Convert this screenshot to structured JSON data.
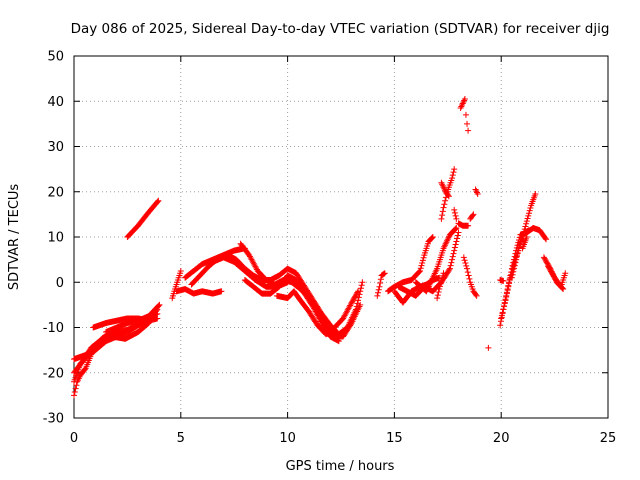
{
  "chart_data": {
    "type": "scatter",
    "title": "Day 086 of 2025, Sidereal Day-to-day VTEC variation (SDTVAR) for receiver djig",
    "xlabel": "GPS time / hours",
    "ylabel": "SDTVAR / TECUs",
    "xlim": [
      0,
      25
    ],
    "ylim": [
      -30,
      50
    ],
    "xticks": [
      0,
      5,
      10,
      15,
      20,
      25
    ],
    "yticks": [
      -30,
      -20,
      -10,
      0,
      10,
      20,
      30,
      40,
      50
    ],
    "grid": true,
    "marker": "plus",
    "color": "#ff0000",
    "tracks": [
      [
        [
          0.0,
          -25.0
        ],
        [
          0.15,
          -22.0
        ],
        [
          0.3,
          -20.5
        ],
        [
          0.55,
          -19.0
        ],
        [
          0.8,
          -16.0
        ],
        [
          1.0,
          -14.0
        ],
        [
          1.3,
          -12.5
        ],
        [
          1.6,
          -11.5
        ],
        [
          2.0,
          -11.0
        ],
        [
          2.5,
          -10.5
        ],
        [
          3.0,
          -9.5
        ],
        [
          3.5,
          -8.5
        ],
        [
          3.9,
          -6.0
        ]
      ],
      [
        [
          0.0,
          -22.0
        ],
        [
          0.3,
          -18.0
        ],
        [
          0.6,
          -16.5
        ],
        [
          1.0,
          -15.0
        ],
        [
          1.5,
          -13.0
        ],
        [
          2.0,
          -12.0
        ],
        [
          2.5,
          -11.0
        ],
        [
          3.0,
          -9.5
        ],
        [
          3.5,
          -7.5
        ],
        [
          3.9,
          -7.0
        ]
      ],
      [
        [
          0.0,
          -17.0
        ],
        [
          0.3,
          -16.5
        ],
        [
          0.6,
          -16.0
        ]
      ],
      [
        [
          0.0,
          -20.0
        ],
        [
          0.4,
          -17.5
        ],
        [
          0.8,
          -14.5
        ],
        [
          1.2,
          -13.0
        ],
        [
          1.8,
          -12.0
        ],
        [
          2.4,
          -12.5
        ],
        [
          3.0,
          -11.0
        ],
        [
          3.5,
          -9.0
        ]
      ],
      [
        [
          0.9,
          -10.0
        ],
        [
          1.2,
          -9.5
        ],
        [
          1.5,
          -9.0
        ],
        [
          2.0,
          -8.5
        ],
        [
          2.5,
          -8.0
        ],
        [
          3.0,
          -8.0
        ],
        [
          3.5,
          -8.5
        ],
        [
          3.9,
          -8.0
        ]
      ],
      [
        [
          1.5,
          -11.0
        ],
        [
          2.0,
          -10.0
        ],
        [
          2.5,
          -9.0
        ],
        [
          3.0,
          -8.5
        ],
        [
          3.5,
          -7.5
        ],
        [
          4.0,
          -5.0
        ]
      ],
      [
        [
          2.5,
          10.0
        ],
        [
          3.0,
          12.5
        ],
        [
          3.5,
          15.5
        ],
        [
          3.95,
          18.0
        ]
      ],
      [
        [
          4.6,
          -3.5
        ],
        [
          4.8,
          -0.5
        ],
        [
          5.0,
          2.5
        ]
      ],
      [
        [
          4.8,
          -2.0
        ],
        [
          5.2,
          -1.5
        ],
        [
          5.6,
          -2.5
        ],
        [
          6.0,
          -2.0
        ],
        [
          6.5,
          -2.5
        ],
        [
          6.9,
          -2.0
        ]
      ],
      [
        [
          5.2,
          1.0
        ],
        [
          5.6,
          2.5
        ],
        [
          6.0,
          4.0
        ],
        [
          6.5,
          5.0
        ],
        [
          7.0,
          6.0
        ],
        [
          7.5,
          7.0
        ],
        [
          8.0,
          7.5
        ]
      ],
      [
        [
          5.5,
          -0.5
        ],
        [
          6.0,
          2.0
        ],
        [
          6.5,
          4.5
        ],
        [
          7.0,
          5.5
        ],
        [
          7.5,
          4.5
        ],
        [
          8.0,
          2.5
        ],
        [
          8.5,
          0.5
        ],
        [
          9.0,
          -1.0
        ],
        [
          9.5,
          -1.0
        ],
        [
          10.0,
          0.0
        ]
      ],
      [
        [
          6.3,
          3.5
        ],
        [
          6.8,
          5.5
        ],
        [
          7.2,
          6.0
        ],
        [
          7.6,
          5.0
        ],
        [
          8.0,
          3.0
        ],
        [
          8.4,
          1.5
        ],
        [
          8.8,
          0.5
        ],
        [
          9.2,
          0.5
        ],
        [
          9.6,
          1.5
        ],
        [
          10.0,
          3.0
        ],
        [
          10.4,
          2.0
        ],
        [
          10.8,
          -1.0
        ],
        [
          11.2,
          -4.0
        ],
        [
          11.6,
          -7.0
        ],
        [
          12.0,
          -9.5
        ],
        [
          12.4,
          -11.5
        ],
        [
          12.8,
          -10.0
        ],
        [
          13.2,
          -6.0
        ],
        [
          13.5,
          0.0
        ]
      ],
      [
        [
          7.8,
          8.5
        ],
        [
          8.2,
          6.0
        ],
        [
          8.6,
          2.5
        ],
        [
          9.0,
          0.5
        ],
        [
          9.4,
          -0.5
        ],
        [
          9.8,
          0.5
        ],
        [
          10.2,
          0.0
        ],
        [
          10.6,
          -1.5
        ],
        [
          11.0,
          -3.5
        ],
        [
          11.4,
          -6.5
        ],
        [
          11.8,
          -9.5
        ],
        [
          12.2,
          -12.0
        ],
        [
          12.6,
          -12.0
        ],
        [
          13.0,
          -9.0
        ],
        [
          13.4,
          -5.0
        ]
      ],
      [
        [
          8.0,
          0.5
        ],
        [
          8.4,
          -1.0
        ],
        [
          8.8,
          -2.5
        ],
        [
          9.2,
          -2.5
        ],
        [
          9.6,
          -1.0
        ],
        [
          10.0,
          1.5
        ],
        [
          10.4,
          0.5
        ],
        [
          10.8,
          -2.5
        ],
        [
          11.2,
          -5.5
        ],
        [
          11.6,
          -9.0
        ],
        [
          12.0,
          -12.0
        ],
        [
          12.4,
          -13.0
        ]
      ],
      [
        [
          9.5,
          -3.0
        ],
        [
          10.0,
          -3.5
        ],
        [
          10.3,
          -2.0
        ],
        [
          10.6,
          -4.0
        ],
        [
          11.0,
          -6.5
        ],
        [
          11.4,
          -9.5
        ],
        [
          11.8,
          -11.5
        ],
        [
          12.2,
          -10.0
        ],
        [
          12.6,
          -8.0
        ],
        [
          13.0,
          -4.5
        ],
        [
          13.3,
          -2.0
        ]
      ],
      [
        [
          14.2,
          -3.0
        ],
        [
          14.3,
          -1.0
        ],
        [
          14.4,
          1.5
        ],
        [
          14.55,
          2.0
        ]
      ],
      [
        [
          14.7,
          -2.0
        ],
        [
          15.0,
          -1.0
        ],
        [
          15.4,
          0.0
        ],
        [
          15.8,
          0.5
        ],
        [
          16.2,
          2.5
        ],
        [
          16.4,
          6.0
        ],
        [
          16.6,
          9.0
        ],
        [
          16.8,
          10.0
        ]
      ],
      [
        [
          15.0,
          -2.0
        ],
        [
          15.4,
          -4.5
        ],
        [
          15.8,
          -2.0
        ],
        [
          16.2,
          -1.0
        ],
        [
          16.5,
          -0.5
        ],
        [
          16.8,
          0.5
        ],
        [
          17.1,
          1.0
        ]
      ],
      [
        [
          15.2,
          -1.0
        ],
        [
          15.6,
          -2.0
        ],
        [
          16.0,
          -3.0
        ],
        [
          16.4,
          -1.0
        ],
        [
          16.8,
          -2.0
        ],
        [
          17.2,
          0.0
        ],
        [
          17.6,
          3.0
        ],
        [
          17.8,
          7.0
        ],
        [
          18.0,
          11.0
        ]
      ],
      [
        [
          16.0,
          0.0
        ],
        [
          16.5,
          -2.0
        ],
        [
          17.0,
          3.0
        ],
        [
          17.3,
          7.5
        ],
        [
          17.6,
          10.5
        ],
        [
          17.9,
          12.0
        ]
      ],
      [
        [
          17.0,
          -3.5
        ],
        [
          17.1,
          -1.5
        ],
        [
          17.3,
          2.0
        ]
      ],
      [
        [
          17.2,
          14.0
        ],
        [
          17.3,
          16.5
        ],
        [
          17.45,
          19.5
        ],
        [
          17.55,
          21.0
        ],
        [
          17.7,
          23.0
        ],
        [
          17.8,
          25.0
        ]
      ],
      [
        [
          17.2,
          22.0
        ],
        [
          17.4,
          20.0
        ],
        [
          17.55,
          19.0
        ]
      ],
      [
        [
          17.8,
          16.0
        ],
        [
          17.9,
          14.0
        ]
      ],
      [
        [
          18.1,
          38.5
        ],
        [
          18.2,
          39.5
        ],
        [
          18.3,
          40.5
        ],
        [
          18.35,
          37.0
        ],
        [
          18.4,
          35.0
        ],
        [
          18.45,
          33.5
        ]
      ],
      [
        [
          18.0,
          13.0
        ],
        [
          18.2,
          12.5
        ],
        [
          18.45,
          12.5
        ]
      ],
      [
        [
          18.25,
          5.5
        ],
        [
          18.4,
          3.0
        ],
        [
          18.55,
          0.0
        ],
        [
          18.7,
          -2.0
        ],
        [
          18.85,
          -3.0
        ]
      ],
      [
        [
          18.55,
          14.0
        ],
        [
          18.7,
          15.0
        ]
      ],
      [
        [
          18.8,
          20.5
        ],
        [
          18.9,
          19.5
        ]
      ],
      [
        [
          19.4,
          -14.5
        ]
      ],
      [
        [
          19.95,
          0.5
        ],
        [
          20.1,
          0.3
        ]
      ],
      [
        [
          19.95,
          -9.5
        ],
        [
          20.1,
          -6.0
        ],
        [
          20.3,
          -1.5
        ],
        [
          20.5,
          3.0
        ],
        [
          20.7,
          7.0
        ],
        [
          20.9,
          10.5
        ],
        [
          21.2,
          11.0
        ],
        [
          21.5,
          12.0
        ],
        [
          21.8,
          11.5
        ],
        [
          22.1,
          9.5
        ]
      ],
      [
        [
          20.0,
          -8.0
        ],
        [
          20.2,
          -4.0
        ],
        [
          20.4,
          0.5
        ],
        [
          20.6,
          4.0
        ],
        [
          20.8,
          7.0
        ],
        [
          21.0,
          10.0
        ],
        [
          21.2,
          13.5
        ],
        [
          21.4,
          17.0
        ],
        [
          21.6,
          19.5
        ]
      ],
      [
        [
          20.5,
          1.0
        ],
        [
          20.7,
          5.0
        ],
        [
          20.9,
          9.0
        ],
        [
          21.1,
          11.0
        ],
        [
          21.3,
          11.5
        ]
      ],
      [
        [
          21.0,
          7.5
        ],
        [
          21.2,
          10.0
        ]
      ],
      [
        [
          22.0,
          5.5
        ],
        [
          22.3,
          3.0
        ],
        [
          22.6,
          0.0
        ],
        [
          22.9,
          -1.5
        ]
      ],
      [
        [
          22.2,
          3.5
        ],
        [
          22.5,
          1.0
        ],
        [
          22.8,
          -1.0
        ],
        [
          23.0,
          2.0
        ]
      ]
    ]
  }
}
